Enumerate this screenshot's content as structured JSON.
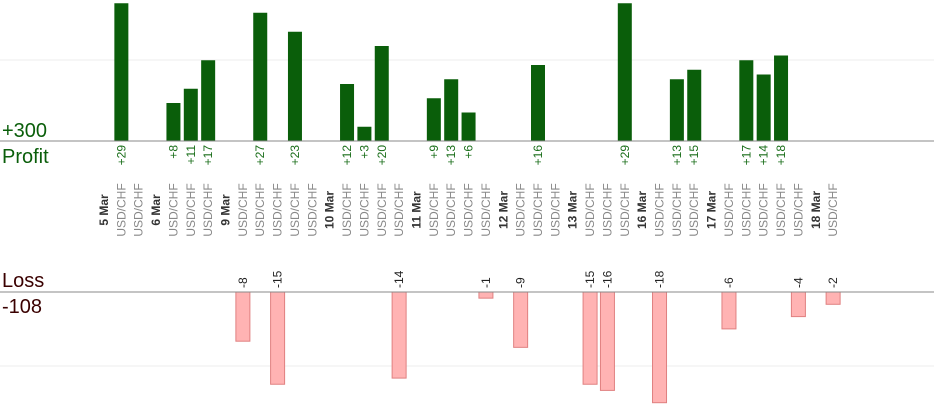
{
  "chart_data": {
    "type": "bar",
    "profit_label": "Profit",
    "profit_total": "+300",
    "loss_label": "Loss",
    "loss_total": "-108",
    "profit_range": [
      0,
      35
    ],
    "loss_range": [
      -20,
      0
    ],
    "grid": true,
    "colors": {
      "profit_bar": "#0a5e0a",
      "profit_text": "#1a6e1a",
      "loss_bar": "#ffb3b3",
      "loss_border": "#e08080",
      "axis": "#888888",
      "grid": "#eeeeee"
    },
    "days": [
      {
        "date": "5 Mar",
        "trades": [
          {
            "pair": "USD/CHF",
            "result": 29
          },
          {
            "pair": "USD/CHF",
            "result": 0
          }
        ]
      },
      {
        "date": "6 Mar",
        "trades": [
          {
            "pair": "USD/CHF",
            "result": 8
          },
          {
            "pair": "USD/CHF",
            "result": 11
          },
          {
            "pair": "USD/CHF",
            "result": 17
          }
        ]
      },
      {
        "date": "9 Mar",
        "trades": [
          {
            "pair": "USD/CHF",
            "result": -8
          },
          {
            "pair": "USD/CHF",
            "result": 27
          },
          {
            "pair": "USD/CHF",
            "result": -15
          },
          {
            "pair": "USD/CHF",
            "result": 23
          },
          {
            "pair": "USD/CHF",
            "result": 0
          }
        ]
      },
      {
        "date": "10 Mar",
        "trades": [
          {
            "pair": "USD/CHF",
            "result": 12
          },
          {
            "pair": "USD/CHF",
            "result": 3
          },
          {
            "pair": "USD/CHF",
            "result": 20
          },
          {
            "pair": "USD/CHF",
            "result": -14
          }
        ]
      },
      {
        "date": "11 Mar",
        "trades": [
          {
            "pair": "USD/CHF",
            "result": 9
          },
          {
            "pair": "USD/CHF",
            "result": 13
          },
          {
            "pair": "USD/CHF",
            "result": 6
          },
          {
            "pair": "USD/CHF",
            "result": -1
          }
        ]
      },
      {
        "date": "12 Mar",
        "trades": [
          {
            "pair": "USD/CHF",
            "result": -9
          },
          {
            "pair": "USD/CHF",
            "result": 16
          },
          {
            "pair": "USD/CHF",
            "result": 0
          }
        ]
      },
      {
        "date": "13 Mar",
        "trades": [
          {
            "pair": "USD/CHF",
            "result": -15
          },
          {
            "pair": "USD/CHF",
            "result": -16
          },
          {
            "pair": "USD/CHF",
            "result": 29
          }
        ]
      },
      {
        "date": "16 Mar",
        "trades": [
          {
            "pair": "USD/CHF",
            "result": -18
          },
          {
            "pair": "USD/CHF",
            "result": 13
          },
          {
            "pair": "USD/CHF",
            "result": 15
          }
        ]
      },
      {
        "date": "17 Mar",
        "trades": [
          {
            "pair": "USD/CHF",
            "result": -6
          },
          {
            "pair": "USD/CHF",
            "result": 17
          },
          {
            "pair": "USD/CHF",
            "result": 14
          },
          {
            "pair": "USD/CHF",
            "result": 18
          },
          {
            "pair": "USD/CHF",
            "result": -4
          }
        ]
      },
      {
        "date": "18 Mar",
        "trades": [
          {
            "pair": "USD/CHF",
            "result": -2
          }
        ]
      }
    ]
  }
}
